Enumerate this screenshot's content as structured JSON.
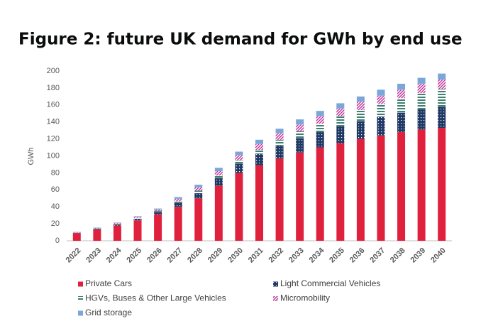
{
  "chart_data": {
    "type": "stacked_bar",
    "title": "Figure 2: future UK demand for GWh by end use",
    "y_label": "GWh",
    "categories": [
      "2022",
      "2023",
      "2024",
      "2025",
      "2026",
      "2027",
      "2028",
      "2029",
      "2030",
      "2031",
      "2032",
      "2033",
      "2034",
      "2035",
      "2036",
      "2037",
      "2038",
      "2039",
      "2040"
    ],
    "series": [
      {
        "name": "Private Cars",
        "color": "#e0213e",
        "pattern": "solid",
        "values": [
          9,
          13,
          18,
          24,
          31,
          40,
          50,
          65,
          80,
          89,
          97,
          104,
          110,
          115,
          120,
          124,
          128,
          131,
          133
        ]
      },
      {
        "name": "Light Commercial Vehicles",
        "color": "#1f3864",
        "pattern": "dots",
        "values": [
          0.5,
          1,
          1.5,
          2,
          3,
          4.5,
          6,
          9,
          11,
          13,
          15,
          17,
          18,
          20,
          21,
          22,
          23,
          24,
          25
        ]
      },
      {
        "name": "HGVs, Buses & Other Large Vehicles",
        "color": "#3f7f6f",
        "pattern": "hstripes",
        "values": [
          0.3,
          0.5,
          0.7,
          1,
          1.5,
          2,
          3,
          3,
          4,
          5,
          7,
          8,
          10,
          12,
          13,
          15,
          17,
          19,
          21
        ]
      },
      {
        "name": "Micromobility",
        "color": "#c0309a",
        "pattern": "diagonal",
        "values": [
          0.5,
          0.6,
          0.8,
          1.2,
          1.5,
          3,
          4,
          5,
          6,
          7,
          8,
          8,
          9,
          9,
          10,
          10,
          10,
          11,
          11
        ]
      },
      {
        "name": "Grid storage",
        "color": "#7aa7d8",
        "pattern": "solid",
        "values": [
          0.2,
          0.4,
          0.5,
          0.8,
          1,
          2,
          3,
          4,
          4,
          5,
          5,
          6,
          6,
          6,
          6,
          7,
          7,
          7,
          7
        ]
      }
    ],
    "ylim": [
      0,
      200
    ],
    "yticks": [
      0,
      20,
      40,
      60,
      80,
      100,
      120,
      140,
      160,
      180,
      200
    ],
    "grid": false
  }
}
